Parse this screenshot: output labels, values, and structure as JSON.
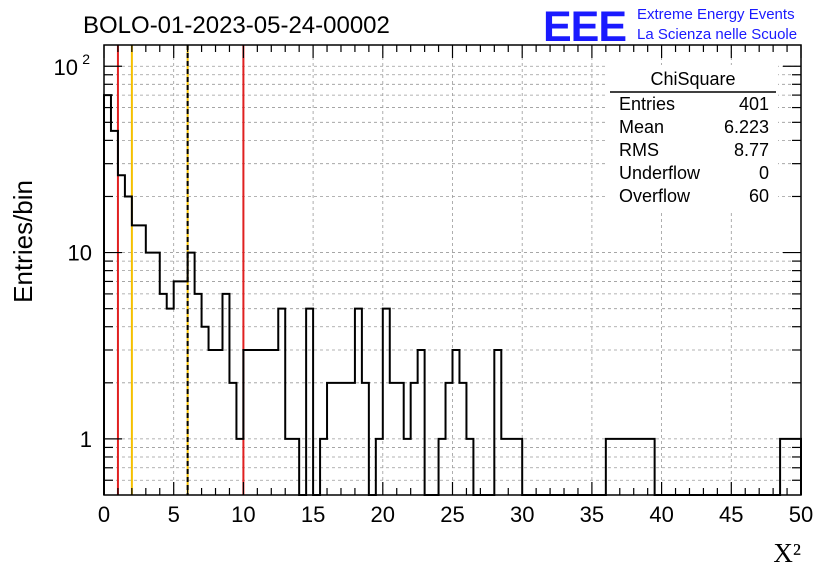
{
  "header": {
    "title": "BOLO-01-2023-05-24-00002",
    "logo_text": "EEE",
    "logo_line1": "Extreme Energy Events",
    "logo_line2": "La Scienza nelle Scuole"
  },
  "stats": {
    "name": "ChiSquare",
    "rows": [
      {
        "label": "Entries",
        "value": "401"
      },
      {
        "label": "Mean",
        "value": "6.223"
      },
      {
        "label": "RMS",
        "value": "8.77"
      },
      {
        "label": "Underflow",
        "value": "0"
      },
      {
        "label": "Overflow",
        "value": "60"
      }
    ]
  },
  "colors": {
    "red_lines": "#e02020",
    "orange_lines": "#f5c000",
    "logo": "#1a1aff",
    "histogram": "#000000"
  },
  "chart_data": {
    "type": "histogram",
    "title": "BOLO-01-2023-05-24-00002",
    "xlabel": "X²",
    "ylabel": "Entries/bin",
    "xlim": [
      0,
      50
    ],
    "ylim": [
      0.5,
      130
    ],
    "yscale": "log",
    "grid": true,
    "x_ticks": [
      0,
      5,
      10,
      15,
      20,
      25,
      30,
      35,
      40,
      45,
      50
    ],
    "y_ticks": [
      {
        "value": 1,
        "label": "1"
      },
      {
        "value": 10,
        "label": "10"
      },
      {
        "value": 100,
        "label": "10",
        "exponent": "2"
      }
    ],
    "bin_width": 0.5,
    "bin_values": [
      70,
      45,
      26,
      20,
      14,
      14,
      10,
      10,
      6,
      5,
      7,
      7,
      10,
      6,
      4,
      3,
      3,
      6,
      2,
      1,
      3,
      3,
      3,
      3,
      3,
      5,
      1,
      1,
      0,
      5,
      0,
      1,
      2,
      2,
      2,
      2,
      5,
      2,
      0,
      1,
      5,
      2,
      2,
      1,
      2,
      3,
      0,
      0,
      1,
      2,
      3,
      2,
      1,
      0,
      0,
      0,
      3,
      1,
      1,
      1,
      0,
      0,
      0,
      0,
      0,
      0,
      0,
      0,
      0,
      0,
      0,
      0,
      1,
      1,
      1,
      1,
      1,
      1,
      1,
      0,
      0,
      0,
      0,
      0,
      0,
      0,
      0,
      0,
      0,
      0,
      0,
      0,
      0,
      0,
      0,
      0,
      0,
      1,
      1,
      1
    ],
    "vertical_lines": [
      {
        "x": 1,
        "color": "red",
        "style": "solid"
      },
      {
        "x": 2,
        "color": "orange",
        "style": "solid"
      },
      {
        "x": 6,
        "color": "orange",
        "style": "solid"
      },
      {
        "x": 6,
        "color": "black",
        "style": "dashed"
      },
      {
        "x": 10,
        "color": "red",
        "style": "solid"
      }
    ]
  }
}
